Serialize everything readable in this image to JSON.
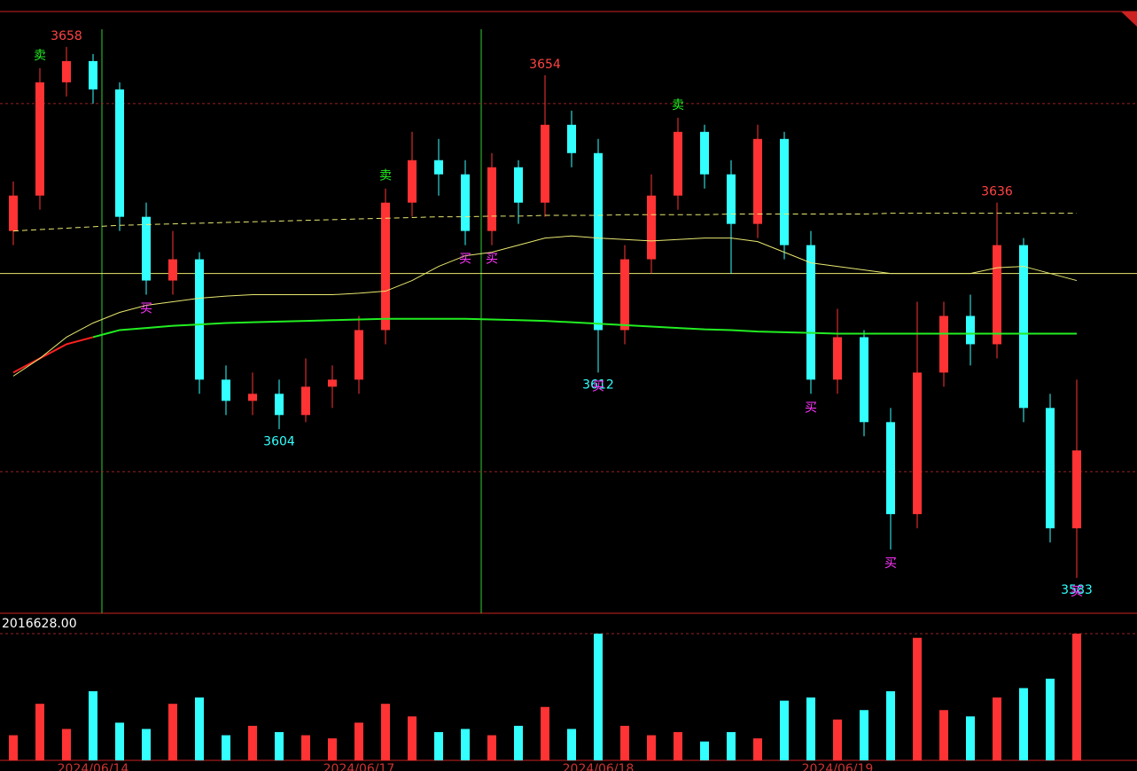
{
  "chart_data": {
    "type": "candlestick",
    "ylim": [
      3578,
      3663
    ],
    "grid_levels": [
      3650,
      3598
    ],
    "up_color": "#ff3333",
    "down_color": "#33ffff",
    "candles": {
      "open": [
        3632,
        3637,
        3653,
        3656,
        3652,
        3634,
        3625,
        3628,
        3611,
        3608,
        3609,
        3606,
        3610,
        3611,
        3618,
        3636,
        3642,
        3640,
        3632,
        3641,
        3636,
        3647,
        3643,
        3618,
        3628,
        3637,
        3646,
        3640,
        3633,
        3645,
        3630,
        3611,
        3617,
        3605,
        3592,
        3612,
        3620,
        3616,
        3630,
        3607,
        3590
      ],
      "high": [
        3639,
        3655,
        3658,
        3657,
        3653,
        3636,
        3632,
        3629,
        3613,
        3612,
        3611,
        3614,
        3613,
        3620,
        3638,
        3646,
        3645,
        3642,
        3643,
        3642,
        3654,
        3649,
        3645,
        3630,
        3640,
        3648,
        3647,
        3642,
        3647,
        3646,
        3632,
        3621,
        3618,
        3607,
        3622,
        3622,
        3623,
        3636,
        3631,
        3609,
        3611
      ],
      "low": [
        3630,
        3635,
        3651,
        3650,
        3632,
        3623,
        3623,
        3609,
        3606,
        3606,
        3604,
        3605,
        3607,
        3609,
        3616,
        3634,
        3637,
        3630,
        3630,
        3633,
        3634,
        3641,
        3612,
        3616,
        3626,
        3635,
        3638,
        3626,
        3631,
        3628,
        3609,
        3609,
        3603,
        3587,
        3590,
        3610,
        3613,
        3614,
        3605,
        3588,
        3583
      ],
      "close": [
        3637,
        3653,
        3656,
        3652,
        3634,
        3625,
        3628,
        3611,
        3608,
        3609,
        3606,
        3610,
        3611,
        3618,
        3636,
        3642,
        3640,
        3632,
        3641,
        3636,
        3647,
        3643,
        3618,
        3628,
        3637,
        3646,
        3640,
        3633,
        3645,
        3630,
        3611,
        3617,
        3605,
        3592,
        3612,
        3620,
        3616,
        3630,
        3607,
        3590,
        3601
      ]
    },
    "ma": [
      {
        "color": "#ff2020",
        "width": 2,
        "dash": false,
        "values": [
          3612,
          3614,
          3616,
          3617,
          null,
          null,
          null,
          null,
          null,
          null,
          null,
          null,
          null,
          null,
          null,
          null,
          null,
          null,
          null,
          null,
          null,
          null,
          null,
          null,
          null,
          null,
          null,
          null,
          null,
          null,
          null,
          null,
          null,
          null,
          null,
          null,
          null,
          null,
          null,
          null,
          null
        ]
      },
      {
        "color": "#22ee22",
        "width": 2,
        "dash": false,
        "values": [
          null,
          null,
          null,
          3617,
          3618,
          3618.3,
          3618.6,
          3618.8,
          3619,
          3619.1,
          3619.2,
          3619.3,
          3619.4,
          3619.5,
          3619.6,
          3619.6,
          3619.6,
          3619.6,
          3619.5,
          3619.4,
          3619.3,
          3619.1,
          3618.9,
          3618.7,
          3618.5,
          3618.3,
          3618.1,
          3618,
          3617.8,
          3617.7,
          3617.6,
          3617.5,
          3617.5,
          3617.5,
          3617.5,
          3617.5,
          3617.5,
          3617.5,
          3617.5,
          3617.5,
          3617.5
        ]
      },
      {
        "color": "#e8e870",
        "width": 1,
        "dash": false,
        "values": [
          3611.5,
          3614,
          3617,
          3619,
          3620.5,
          3621.5,
          3622,
          3622.5,
          3622.8,
          3623,
          3623,
          3623,
          3623,
          3623.2,
          3623.5,
          3625,
          3627,
          3628.5,
          3629,
          3630,
          3631,
          3631.3,
          3631,
          3630.8,
          3630.6,
          3630.8,
          3631,
          3631,
          3630.5,
          3629,
          3627.5,
          3627,
          3626.5,
          3626,
          3626,
          3626,
          3626,
          3626.8,
          3627,
          3626,
          3625
        ]
      },
      {
        "color": "#e8e870",
        "width": 1,
        "dash": true,
        "values": [
          3632,
          3632.2,
          3632.4,
          3632.6,
          3632.8,
          3632.9,
          3633,
          3633.1,
          3633.2,
          3633.3,
          3633.4,
          3633.5,
          3633.6,
          3633.7,
          3633.8,
          3633.9,
          3634,
          3634,
          3634.1,
          3634.1,
          3634.2,
          3634.2,
          3634.2,
          3634.3,
          3634.3,
          3634.3,
          3634.3,
          3634.4,
          3634.4,
          3634.4,
          3634.4,
          3634.4,
          3634.4,
          3634.5,
          3634.5,
          3634.5,
          3634.5,
          3634.5,
          3634.5,
          3634.5,
          3634.5
        ]
      }
    ],
    "h_line": {
      "value": 3626,
      "color": "#e8e870"
    },
    "extremes": [
      {
        "value": 3658,
        "index": 2,
        "color": "#ff4444"
      },
      {
        "value": 3654,
        "index": 20,
        "color": "#ff4444"
      },
      {
        "value": 3636,
        "index": 37,
        "color": "#ff4444"
      },
      {
        "value": 3612,
        "index": 22,
        "color": "#33ffff"
      },
      {
        "value": 3604,
        "index": 10,
        "color": "#33ffff"
      },
      {
        "value": 3583,
        "index": 40,
        "color": "#33ffff"
      }
    ],
    "signals": [
      {
        "text": "卖",
        "index": 1,
        "color": "#22ee22"
      },
      {
        "text": "卖",
        "index": 14,
        "color": "#22ee22"
      },
      {
        "text": "卖",
        "index": 25,
        "color": "#22ee22"
      },
      {
        "text": "买",
        "index": 5,
        "color": "#ff33ff"
      },
      {
        "text": "买",
        "index": 17,
        "color": "#ff33ff"
      },
      {
        "text": "买",
        "index": 18,
        "color": "#ff33ff"
      },
      {
        "text": "买",
        "index": 22,
        "color": "#ff33ff"
      },
      {
        "text": "买",
        "index": 30,
        "color": "#ff33ff"
      },
      {
        "text": "买",
        "index": 33,
        "color": "#ff33ff"
      },
      {
        "text": "买",
        "index": 40,
        "color": "#ff33ff"
      }
    ],
    "volume": {
      "values": [
        400000,
        900000,
        500000,
        1100000,
        600000,
        500000,
        900000,
        1000000,
        400000,
        550000,
        450000,
        400000,
        350000,
        600000,
        900000,
        700000,
        450000,
        500000,
        400000,
        550000,
        850000,
        500000,
        2016628,
        550000,
        400000,
        450000,
        300000,
        450000,
        350000,
        950000,
        1000000,
        650000,
        800000,
        1100000,
        1950000,
        800000,
        700000,
        1000000,
        1150000,
        1300000,
        2016628
      ],
      "ylim": [
        0,
        2016628
      ],
      "yticks": [
        {
          "value": 2016628,
          "label": "2016628.00"
        }
      ]
    },
    "dates": [
      {
        "text": "2024/06/14",
        "index": 3
      },
      {
        "text": "2024/06/17",
        "index": 13
      },
      {
        "text": "2024/06/18",
        "index": 22
      },
      {
        "text": "2024/06/19",
        "index": 31
      }
    ]
  }
}
